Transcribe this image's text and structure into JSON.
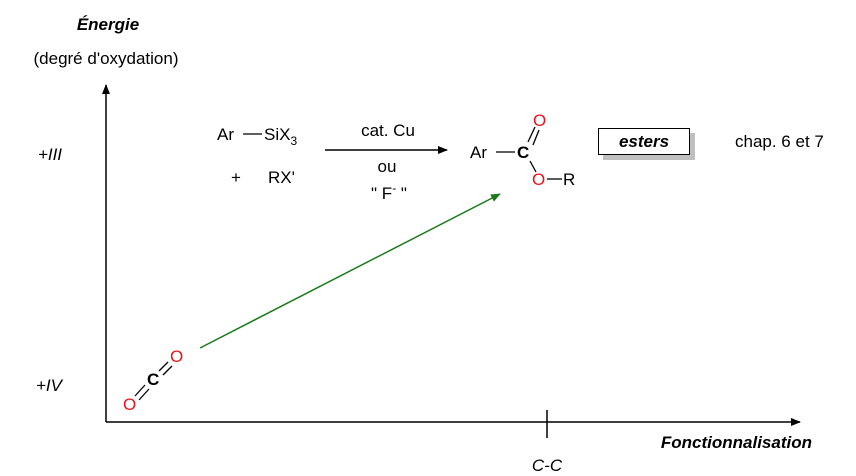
{
  "axes": {
    "y_title": "Énergie",
    "y_subtitle": "(degré d'oxydation)",
    "y_level_upper": "+III",
    "y_level_lower": "+IV",
    "x_title": "Fonctionnalisation",
    "x_tick_label": "C-C"
  },
  "reaction": {
    "reactant1_prefix": "Ar",
    "reactant1_group": "SiX",
    "reactant1_subscript": "3",
    "plus": "+",
    "reactant2": "RX'",
    "condition_top": "cat. Cu",
    "condition_middle": "ou",
    "condition_bottom": "\" F",
    "condition_bottom_sup": "-",
    "condition_bottom_end": " \""
  },
  "product": {
    "aryl": "Ar",
    "carbon": "C",
    "carbonyl_oxygen": "O",
    "ester_oxygen": "O",
    "alkyl": "R"
  },
  "co2": {
    "oxygen_left": "O",
    "carbon": "C",
    "oxygen_right": "O"
  },
  "badge": {
    "label": "esters"
  },
  "chapter_note": "chap. 6 et 7",
  "colors": {
    "oxygen": "#e8141b",
    "arrow": "#1a7a1a",
    "shadow": "#bfbfbf"
  }
}
